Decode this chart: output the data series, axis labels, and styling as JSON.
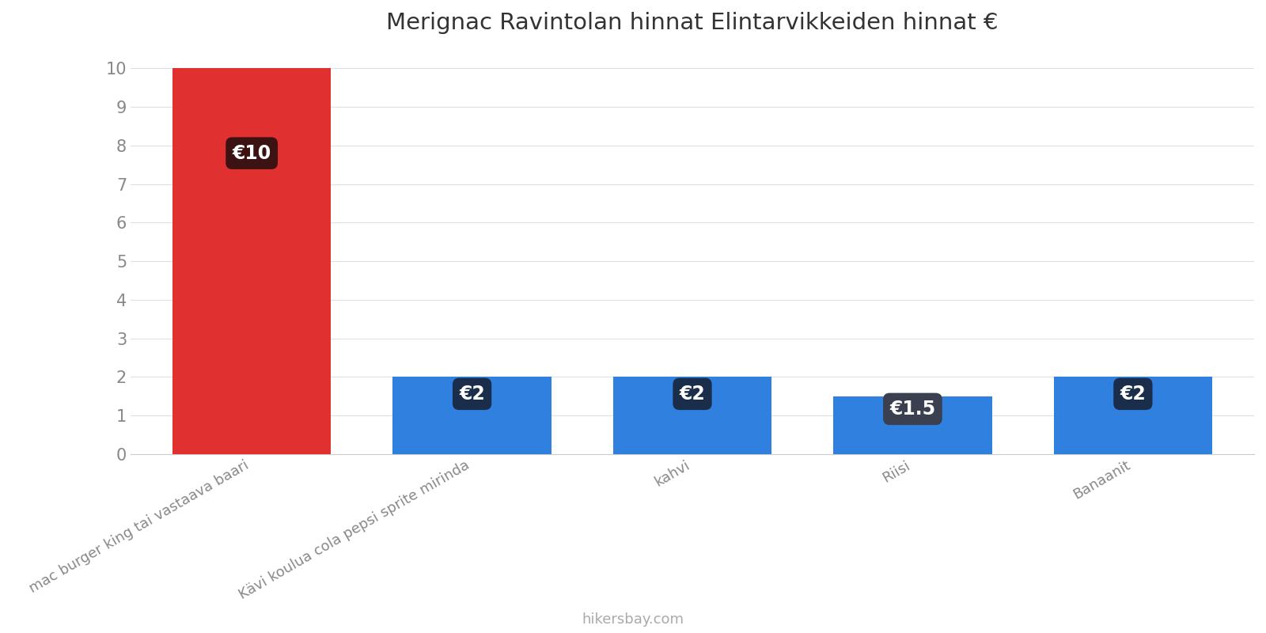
{
  "title": "Merignac Ravintolan hinnat Elintarvikkeiden hinnat €",
  "categories": [
    "mac burger king tai vastaava baari",
    "Kävi koulua cola pepsi sprite mirinda",
    "kahvi",
    "Riisi",
    "Banaanit"
  ],
  "values": [
    10,
    2,
    2,
    1.5,
    2
  ],
  "bar_colors": [
    "#e03030",
    "#3080e0",
    "#3080e0",
    "#3080e0",
    "#3080e0"
  ],
  "label_texts": [
    "€10",
    "€2",
    "€2",
    "€1.5",
    "€2"
  ],
  "label_box_colors": [
    "#3d1212",
    "#1a2d4a",
    "#1a2d4a",
    "#3a4050",
    "#1a2d4a"
  ],
  "ylim": [
    0,
    10.5
  ],
  "yticks": [
    0,
    1,
    2,
    3,
    4,
    5,
    6,
    7,
    8,
    9,
    10
  ],
  "background_color": "#ffffff",
  "grid_color": "#e0e0e0",
  "title_fontsize": 21,
  "tick_fontsize": 15,
  "label_fontsize": 17,
  "xtick_fontsize": 13,
  "watermark": "hikersbay.com",
  "watermark_color": "#aaaaaa",
  "bar_width": 0.72
}
